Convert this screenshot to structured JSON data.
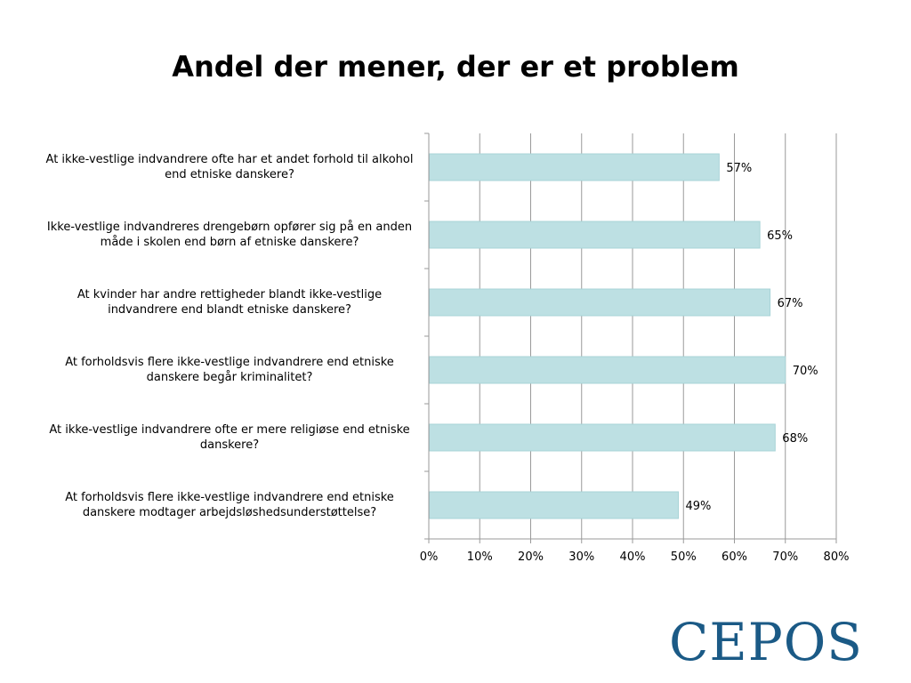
{
  "title": "Andel der mener, der er et problem",
  "colors": {
    "bar_fill": "#bde0e3",
    "bar_stroke": "#a8d3d7",
    "gridline": "#9a9a9a",
    "logo": "#1b5a86"
  },
  "logo_text": "CEPOS",
  "chart_data": {
    "type": "bar",
    "orientation": "horizontal",
    "categories": [
      "At ikke-vestlige indvandrere ofte har et andet forhold til alkohol end etniske danskere?",
      "Ikke-vestlige indvandreres drengebørn opfører sig på en anden måde i skolen end børn af etniske danskere?",
      "At kvinder har andre rettigheder blandt ikke-vestlige indvandrere end blandt etniske danskere?",
      "At forholdsvis flere ikke-vestlige indvandrere end etniske danskere begår kriminalitet?",
      "At ikke-vestlige indvandrere ofte er mere religiøse end etniske danskere?",
      "At forholdsvis flere ikke-vestlige indvandrere end etniske danskere modtager arbejdsløshedsunderstøttelse?"
    ],
    "values": [
      57,
      65,
      67,
      70,
      68,
      49
    ],
    "data_labels": [
      "57%",
      "65%",
      "67%",
      "70%",
      "68%",
      "49%"
    ],
    "xlim": [
      0,
      80
    ],
    "x_ticks": [
      0,
      10,
      20,
      30,
      40,
      50,
      60,
      70,
      80
    ],
    "x_tick_labels": [
      "0%",
      "10%",
      "20%",
      "30%",
      "40%",
      "50%",
      "60%",
      "70%",
      "80%"
    ],
    "grid": true,
    "legend": "none"
  }
}
